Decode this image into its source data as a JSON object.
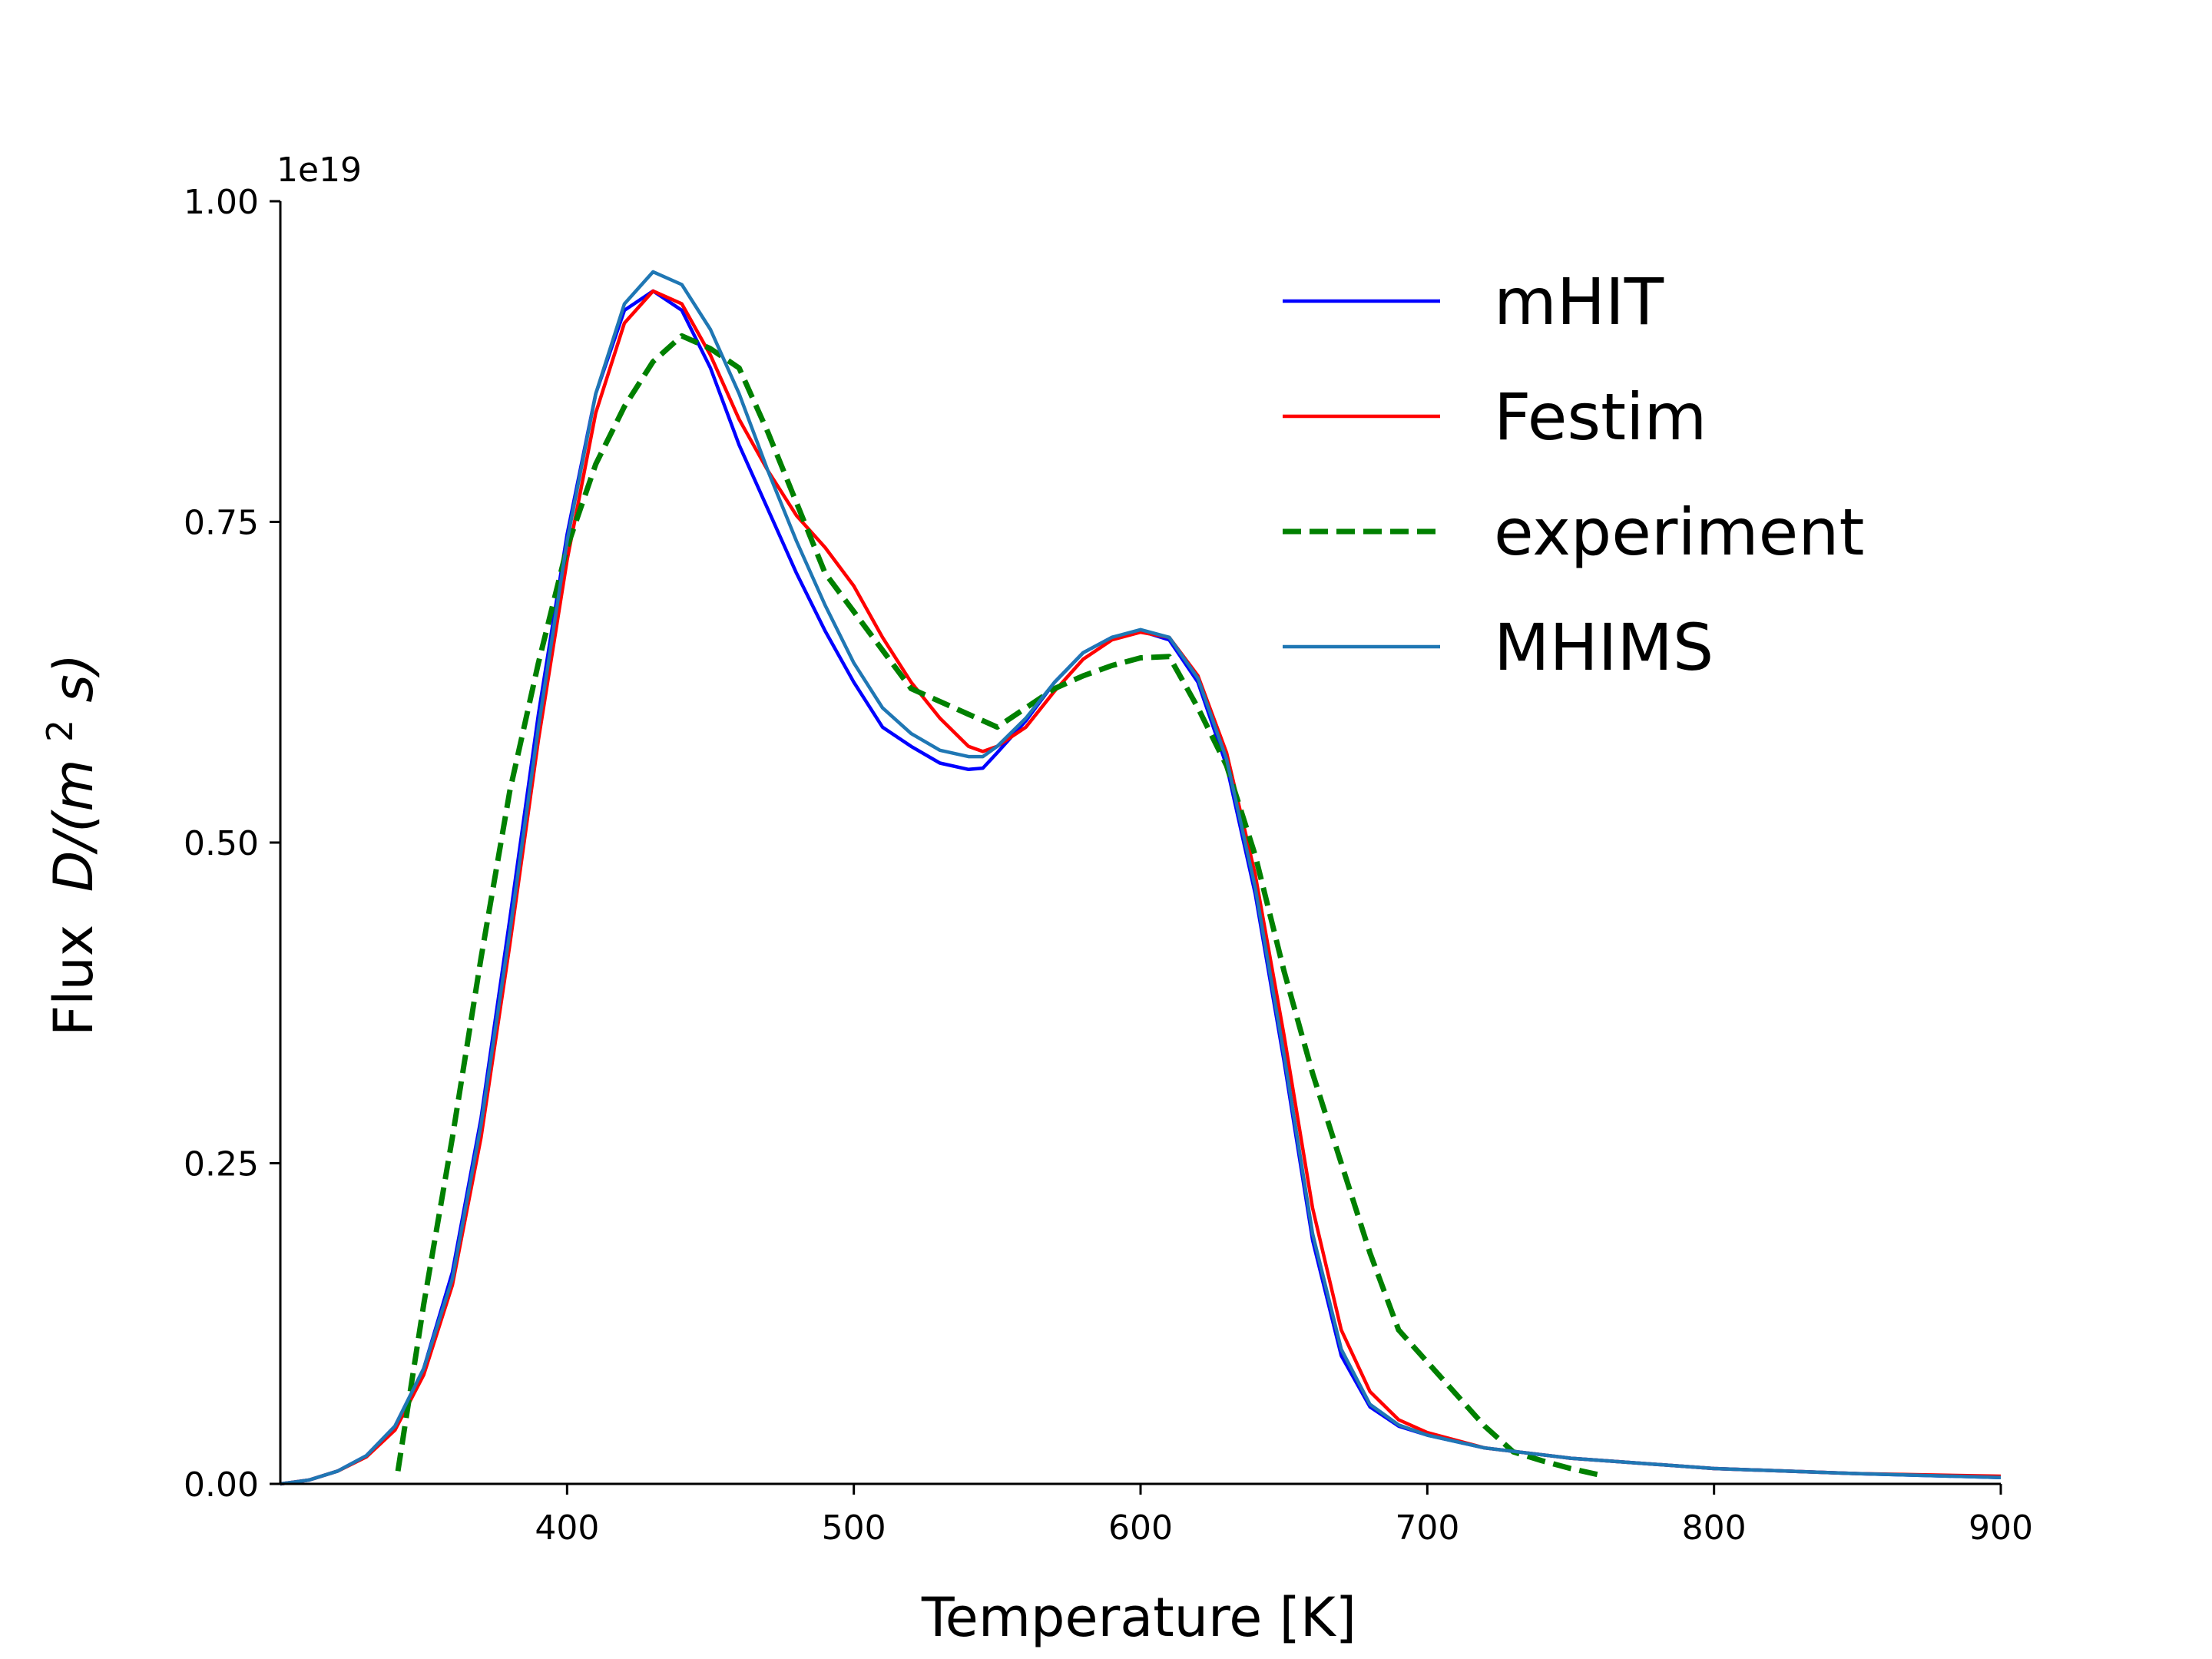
{
  "chart_data": {
    "type": "line",
    "title": "",
    "xlabel": "Temperature [K]",
    "ylabel": "Flux",
    "ylabel_math": "D/(m",
    "ylabel_sup": "2",
    "ylabel_math_end": "s)",
    "y_offset_label": "1e19",
    "xlim": [
      300,
      900
    ],
    "ylim": [
      0,
      1.0
    ],
    "x_ticks": [
      400,
      500,
      600,
      700,
      800,
      900
    ],
    "y_ticks": [
      0.0,
      0.25,
      0.5,
      0.75,
      1.0
    ],
    "x_tick_labels": [
      "400",
      "500",
      "600",
      "700",
      "800",
      "900"
    ],
    "y_tick_labels": [
      "0.00",
      "0.25",
      "0.50",
      "0.75",
      "1.00"
    ],
    "legend_position": "top-right",
    "grid": false,
    "series": [
      {
        "name": "mHIT",
        "color": "#0000ff",
        "style": "solid",
        "x": [
          300,
          310,
          320,
          330,
          340,
          350,
          360,
          370,
          380,
          390,
          400,
          410,
          420,
          430,
          440,
          450,
          460,
          470,
          480,
          490,
          500,
          510,
          520,
          530,
          540,
          545,
          550,
          560,
          570,
          580,
          590,
          600,
          610,
          620,
          630,
          640,
          650,
          660,
          670,
          680,
          690,
          700,
          720,
          750,
          800,
          850,
          900
        ],
        "y": [
          0.0,
          0.003,
          0.01,
          0.022,
          0.045,
          0.09,
          0.165,
          0.285,
          0.44,
          0.6,
          0.74,
          0.85,
          0.915,
          0.93,
          0.915,
          0.87,
          0.81,
          0.76,
          0.71,
          0.665,
          0.625,
          0.59,
          0.575,
          0.562,
          0.557,
          0.558,
          0.57,
          0.595,
          0.625,
          0.648,
          0.66,
          0.665,
          0.658,
          0.625,
          0.56,
          0.46,
          0.33,
          0.19,
          0.1,
          0.06,
          0.045,
          0.038,
          0.028,
          0.02,
          0.012,
          0.008,
          0.005
        ]
      },
      {
        "name": "Festim",
        "color": "#ff0000",
        "style": "solid",
        "x": [
          300,
          310,
          320,
          330,
          340,
          350,
          360,
          370,
          380,
          390,
          400,
          410,
          420,
          430,
          440,
          450,
          460,
          470,
          480,
          490,
          500,
          510,
          520,
          530,
          540,
          545,
          550,
          560,
          570,
          580,
          590,
          600,
          610,
          620,
          630,
          640,
          650,
          660,
          670,
          680,
          690,
          700,
          720,
          750,
          800,
          850,
          900
        ],
        "y": [
          0.0,
          0.003,
          0.01,
          0.021,
          0.042,
          0.085,
          0.155,
          0.27,
          0.42,
          0.58,
          0.72,
          0.835,
          0.905,
          0.93,
          0.92,
          0.88,
          0.83,
          0.79,
          0.755,
          0.73,
          0.7,
          0.66,
          0.625,
          0.597,
          0.575,
          0.571,
          0.575,
          0.59,
          0.618,
          0.643,
          0.658,
          0.664,
          0.66,
          0.63,
          0.57,
          0.475,
          0.35,
          0.215,
          0.12,
          0.072,
          0.05,
          0.04,
          0.028,
          0.02,
          0.012,
          0.008,
          0.006
        ]
      },
      {
        "name": "experiment",
        "color": "#008000",
        "style": "dashed",
        "x": [
          341,
          350,
          360,
          370,
          380,
          390,
          400,
          410,
          420,
          430,
          440,
          450,
          460,
          470,
          480,
          490,
          500,
          510,
          520,
          530,
          540,
          550,
          560,
          570,
          580,
          590,
          600,
          610,
          620,
          630,
          640,
          650,
          660,
          670,
          680,
          690,
          700,
          710,
          720,
          730,
          740,
          750,
          760
        ],
        "y": [
          0.01,
          0.14,
          0.27,
          0.41,
          0.54,
          0.64,
          0.73,
          0.795,
          0.84,
          0.875,
          0.895,
          0.885,
          0.87,
          0.82,
          0.765,
          0.71,
          0.68,
          0.65,
          0.62,
          0.61,
          0.6,
          0.59,
          0.605,
          0.62,
          0.63,
          0.638,
          0.644,
          0.645,
          0.605,
          0.56,
          0.49,
          0.4,
          0.32,
          0.25,
          0.18,
          0.12,
          0.095,
          0.07,
          0.045,
          0.025,
          0.018,
          0.012,
          0.007
        ]
      },
      {
        "name": "MHIMS",
        "color": "#1f77b4",
        "style": "solid",
        "x": [
          300,
          310,
          320,
          330,
          340,
          350,
          360,
          370,
          380,
          390,
          400,
          410,
          420,
          430,
          440,
          450,
          460,
          470,
          480,
          490,
          500,
          510,
          520,
          530,
          540,
          545,
          550,
          560,
          570,
          580,
          590,
          600,
          610,
          620,
          630,
          640,
          650,
          660,
          670,
          680,
          690,
          700,
          720,
          750,
          800,
          850,
          900
        ],
        "y": [
          0.0,
          0.003,
          0.01,
          0.022,
          0.045,
          0.09,
          0.16,
          0.28,
          0.43,
          0.59,
          0.735,
          0.85,
          0.92,
          0.945,
          0.935,
          0.9,
          0.85,
          0.79,
          0.735,
          0.685,
          0.64,
          0.605,
          0.585,
          0.572,
          0.567,
          0.567,
          0.575,
          0.597,
          0.625,
          0.648,
          0.66,
          0.666,
          0.66,
          0.628,
          0.565,
          0.465,
          0.335,
          0.195,
          0.105,
          0.062,
          0.046,
          0.038,
          0.028,
          0.02,
          0.012,
          0.008,
          0.005
        ]
      }
    ]
  }
}
